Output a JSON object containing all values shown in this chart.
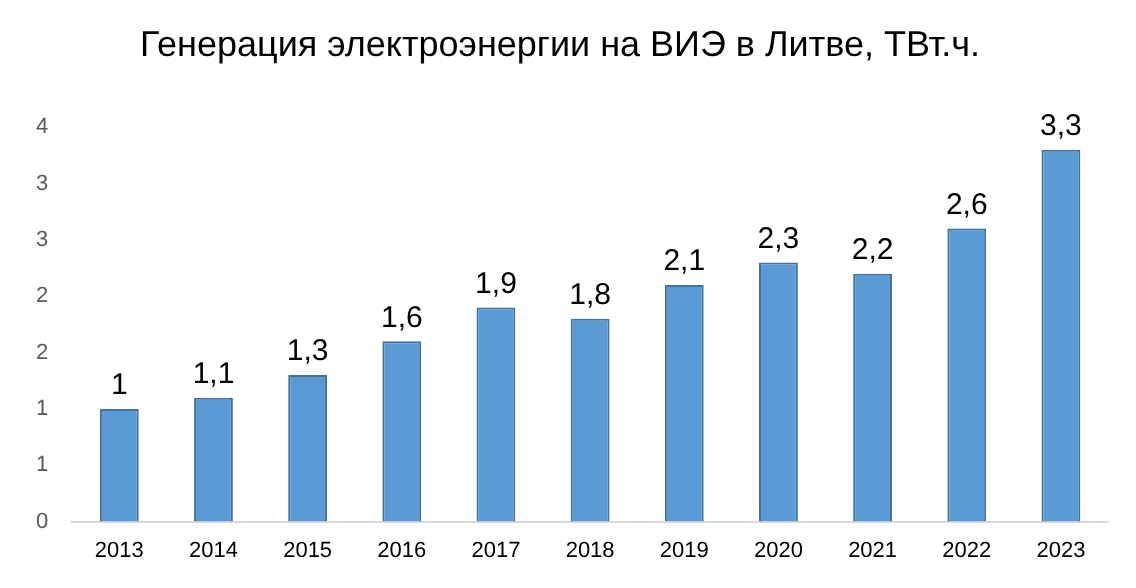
{
  "chart_data": {
    "type": "bar",
    "title": "Генерация электроэнергии на ВИЭ в Литве, ТВт.ч.",
    "categories": [
      "2013",
      "2014",
      "2015",
      "2016",
      "2017",
      "2018",
      "2019",
      "2020",
      "2021",
      "2022",
      "2023"
    ],
    "values": [
      1,
      1.1,
      1.3,
      1.6,
      1.9,
      1.8,
      2.1,
      2.3,
      2.2,
      2.6,
      3.3
    ],
    "value_labels": [
      "1",
      "1,1",
      "1,3",
      "1,6",
      "1,9",
      "1,8",
      "2,1",
      "2,3",
      "2,2",
      "2,6",
      "3,3"
    ],
    "color": "#5b9bd5",
    "ylim": [
      0,
      3.5
    ],
    "yticks": [
      0,
      {
        "value": 0.5,
        "label": "1"
      },
      1,
      {
        "value": 1.5,
        "label": "2"
      },
      2,
      {
        "value": 2.5,
        "label": "3"
      },
      3,
      {
        "value": 3.5,
        "label": "4"
      }
    ],
    "grid": false,
    "legend": false
  }
}
